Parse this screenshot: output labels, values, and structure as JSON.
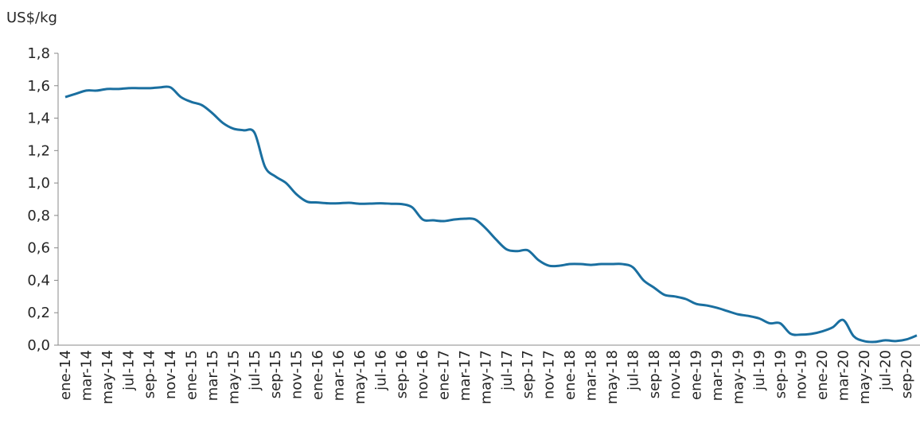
{
  "chart_data": {
    "type": "line",
    "y_label": "US$/kg",
    "categories": [
      "ene-14",
      null,
      "mar-14",
      null,
      "may-14",
      null,
      "jul-14",
      null,
      "sep-14",
      null,
      "nov-14",
      null,
      "ene-15",
      null,
      "mar-15",
      null,
      "may-15",
      null,
      "jul-15",
      null,
      "sep-15",
      null,
      "nov-15",
      null,
      "ene-16",
      null,
      "mar-16",
      null,
      "may-16",
      null,
      "jul-16",
      null,
      "sep-16",
      null,
      "nov-16",
      null,
      "ene-17",
      null,
      "mar-17",
      null,
      "may-17",
      null,
      "jul-17",
      null,
      "sep-17",
      null,
      "nov-17",
      null,
      "ene-18",
      null,
      "mar-18",
      null,
      "may-18",
      null,
      "jul-18",
      null,
      "sep-18",
      null,
      "nov-18",
      null,
      "ene-19",
      null,
      "mar-19",
      null,
      "may-19",
      null,
      "jul-19",
      null,
      "sep-19",
      null,
      "nov-19",
      null,
      "ene-20",
      null,
      "mar-20",
      null,
      "may-20",
      null,
      "jul-20",
      null,
      "sep-20",
      null
    ],
    "series": [
      {
        "color": "#1a6fa0",
        "values": [
          1.53,
          1.55,
          1.57,
          1.57,
          1.58,
          1.58,
          1.585,
          1.585,
          1.585,
          1.59,
          1.59,
          1.53,
          1.5,
          1.48,
          1.43,
          1.37,
          1.335,
          1.325,
          1.31,
          1.1,
          1.04,
          1.0,
          0.93,
          0.885,
          0.88,
          0.875,
          0.875,
          0.878,
          0.872,
          0.873,
          0.875,
          0.872,
          0.87,
          0.85,
          0.775,
          0.77,
          0.765,
          0.775,
          0.78,
          0.775,
          0.72,
          0.65,
          0.59,
          0.58,
          0.585,
          0.525,
          0.49,
          0.49,
          0.5,
          0.5,
          0.495,
          0.5,
          0.5,
          0.5,
          0.48,
          0.4,
          0.355,
          0.31,
          0.3,
          0.285,
          0.255,
          0.245,
          0.23,
          0.21,
          0.19,
          0.18,
          0.165,
          0.135,
          0.135,
          0.07,
          0.065,
          0.07,
          0.085,
          0.11,
          0.155,
          0.055,
          0.025,
          0.02,
          0.03,
          0.025,
          0.035,
          0.06
        ]
      }
    ],
    "ylim": [
      0,
      1.8
    ],
    "yticks": [
      {
        "value": 0,
        "label": "0,0"
      },
      {
        "value": 0.2,
        "label": "0,2"
      },
      {
        "value": 0.4,
        "label": "0,4"
      },
      {
        "value": 0.6,
        "label": "0,6"
      },
      {
        "value": 0.8,
        "label": "0,8"
      },
      {
        "value": 1.0,
        "label": "1,0"
      },
      {
        "value": 1.2,
        "label": "1,2"
      },
      {
        "value": 1.4,
        "label": "1,4"
      },
      {
        "value": 1.6,
        "label": "1,6"
      },
      {
        "value": 1.8,
        "label": "1,8"
      }
    ]
  }
}
